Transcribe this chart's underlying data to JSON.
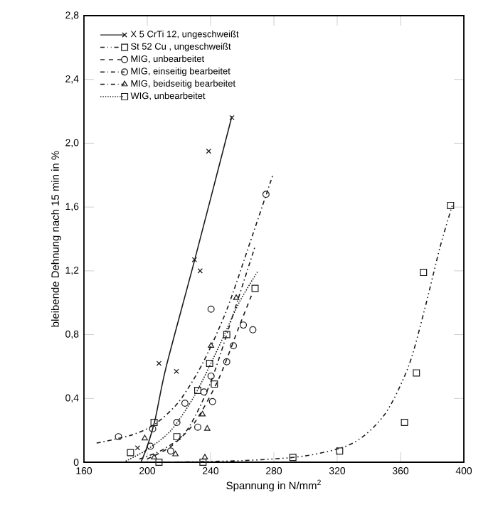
{
  "chart_data": {
    "type": "scatter",
    "xlabel": "Spannung in N/mm$^{2}$",
    "ylabel": "bleibende Dehnung nach 15 min in %",
    "xlim": [
      160,
      400
    ],
    "xticks": [
      160,
      200,
      240,
      280,
      320,
      360,
      400
    ],
    "ylim": [
      0,
      2.8
    ],
    "yticks": [
      0,
      {
        "value": 0.4,
        "label": "0,4"
      },
      {
        "value": 0.8,
        "label": "0,8"
      },
      {
        "value": 1.2,
        "label": "1,2"
      },
      {
        "value": 1.6,
        "label": "1,6"
      },
      {
        "value": 2.0,
        "label": "2,0"
      },
      {
        "value": 2.4,
        "label": "2,4"
      },
      {
        "value": 2.8,
        "label": "2,8"
      }
    ],
    "grid": false,
    "legend": "top left",
    "series": [
      {
        "name": "X 5 CrTi 12, ungeschweißt",
        "color": "#1a1a1a",
        "marker": "cross",
        "line_style": "solid",
        "x": [
          193.9,
          207.4,
          218.4,
          229.8,
          233.4,
          238.8,
          253.5
        ],
        "values": [
          0.09,
          0.62,
          0.57,
          1.27,
          1.2,
          1.95,
          2.16
        ]
      },
      {
        "name": "St 52 Cu , ungeschweißt",
        "color": "#1a1a1a",
        "marker": "square",
        "line_style": "dashdotdot",
        "x": [
          207.4,
          235.2,
          292,
          321.5,
          362.5,
          370,
          374.5,
          391.6
        ],
        "values": [
          0,
          0,
          0.03,
          0.07,
          0.25,
          0.56,
          1.19,
          1.61
        ]
      },
      {
        "name": "MIG, unbearbeitet",
        "color": "#1a1a1a",
        "marker": "circle",
        "line_style": "dashed",
        "x": [
          202,
          218.7,
          231.9,
          241.2,
          250.2,
          254.4,
          260.7,
          266.7
        ],
        "values": [
          0.1,
          0.25,
          0.22,
          0.38,
          0.63,
          0.73,
          0.86,
          0.83
        ]
      },
      {
        "name": "MIG, einseitig bearbeitet",
        "color": "#1a1a1a",
        "marker": "circle",
        "line_style": "dashdot",
        "x": [
          181.8,
          203.4,
          214.8,
          223.8,
          235.8,
          240.3,
          240.3,
          275
        ],
        "values": [
          0.16,
          0.21,
          0.07,
          0.37,
          0.44,
          0.54,
          0.96,
          1.68
        ]
      },
      {
        "name": "MIG, beidseitig bearbeitet",
        "color": "#1a1a1a",
        "marker": "triangle",
        "line_style": "dashdot",
        "x": [
          198.4,
          204.3,
          217.8,
          236.4,
          234.9,
          237.9,
          240.3,
          256.2
        ],
        "values": [
          0.15,
          0.03,
          0.05,
          0.03,
          0.3,
          0.21,
          0.73,
          1.03
        ]
      },
      {
        "name": "WIG, unbearbeitet",
        "color": "#1a1a1a",
        "marker": "square",
        "line_style": "dotted",
        "x": [
          189.4,
          204.3,
          218.7,
          231.9,
          239.4,
          242.4,
          250.2,
          268.1
        ],
        "values": [
          0.06,
          0.25,
          0.16,
          0.45,
          0.62,
          0.49,
          0.8,
          1.09
        ]
      },
      {
        "type": "line",
        "color": "#1a1a1a",
        "line_style": "solid",
        "x": [
          196,
          200,
          205,
          212,
          230,
          253.5
        ],
        "values": [
          0,
          0.1,
          0.27,
          0.6,
          1.27,
          2.17
        ]
      },
      {
        "type": "line",
        "color": "#1a1a1a",
        "line_style": "dashdotdot",
        "x": [
          205,
          260,
          300,
          330,
          350,
          365,
          375,
          385,
          393
        ],
        "values": [
          0,
          0.01,
          0.04,
          0.12,
          0.3,
          0.6,
          0.95,
          1.35,
          1.62
        ]
      },
      {
        "type": "line",
        "color": "#1a1a1a",
        "line_style": "dashed",
        "x": [
          200,
          215,
          230,
          245,
          258,
          266
        ],
        "values": [
          0.02,
          0.1,
          0.25,
          0.52,
          0.85,
          1.05
        ]
      },
      {
        "type": "line",
        "color": "#1a1a1a",
        "line_style": "dashdot",
        "x": [
          168,
          190,
          205,
          220,
          235,
          250,
          265,
          279.3
        ],
        "values": [
          0.12,
          0.17,
          0.24,
          0.38,
          0.62,
          0.95,
          1.38,
          1.8
        ]
      },
      {
        "type": "line",
        "color": "#1a1a1a",
        "line_style": "dashdot",
        "x": [
          195,
          210,
          225,
          240,
          255,
          268
        ],
        "values": [
          0.02,
          0.08,
          0.2,
          0.5,
          0.95,
          1.35
        ]
      },
      {
        "type": "line",
        "color": "#1a1a1a",
        "line_style": "dotted",
        "x": [
          185,
          200,
          215,
          230,
          245,
          258,
          270
        ],
        "values": [
          0,
          0.08,
          0.2,
          0.42,
          0.72,
          1.0,
          1.2
        ]
      }
    ]
  }
}
